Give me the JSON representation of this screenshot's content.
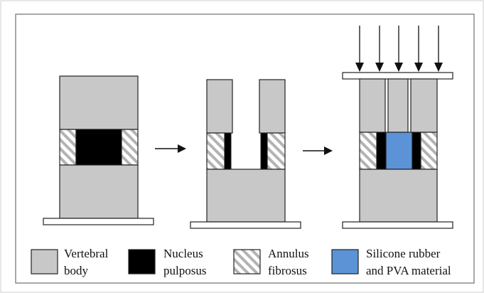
{
  "colors": {
    "vertebral_body": "#c8c8c8",
    "nucleus_pulposus": "#000000",
    "annulus_fill": "#ffffff",
    "annulus_hatch": "#b3b3b3",
    "implant_material": "#5b93d6",
    "outline": "#222222",
    "frame": "#9a9a9a"
  },
  "icons": {
    "step_arrow": "arrow-right-icon",
    "load_arrow": "arrow-down-icon"
  },
  "legend": [
    {
      "key": "vertebral_body",
      "line1": "Vertebral",
      "line2": "body"
    },
    {
      "key": "nucleus_pulposus",
      "line1": "Nucleus",
      "line2": "pulposus"
    },
    {
      "key": "annulus_fibrosus",
      "line1": "Annulus",
      "line2": "fibrosus"
    },
    {
      "key": "implant_material",
      "line1": "Silicone rubber",
      "line2": "and PVA material"
    }
  ]
}
